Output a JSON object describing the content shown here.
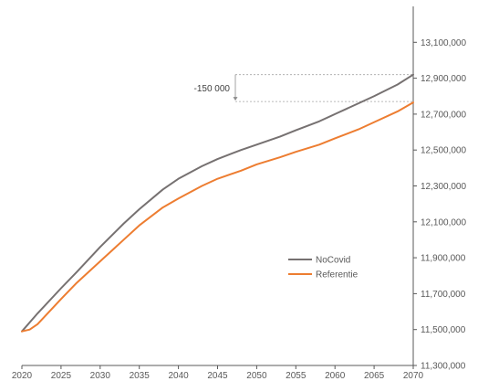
{
  "chart_data": {
    "type": "line",
    "title": "",
    "xlabel": "",
    "ylabel": "",
    "xlim": [
      2020,
      2070
    ],
    "ylim": [
      11300000,
      13300000
    ],
    "x_ticks": [
      "2020",
      "2025",
      "2030",
      "2035",
      "2040",
      "2045",
      "2050",
      "2055",
      "2060",
      "2065",
      "2070"
    ],
    "y_ticks": [
      "11,300,000",
      "11,500,000",
      "11,700,000",
      "11,900,000",
      "12,100,000",
      "12,300,000",
      "12,500,000",
      "12,700,000",
      "12,900,000",
      "13,100,000"
    ],
    "grid": false,
    "legend_position": "center-right",
    "series": [
      {
        "name": "NoCovid",
        "color": "#767171",
        "x": [
          2020,
          2022,
          2025,
          2027,
          2030,
          2033,
          2035,
          2038,
          2040,
          2043,
          2045,
          2048,
          2050,
          2053,
          2055,
          2058,
          2060,
          2063,
          2065,
          2068,
          2070
        ],
        "values": [
          11490000,
          11590000,
          11730000,
          11820000,
          11960000,
          12090000,
          12170000,
          12280000,
          12340000,
          12410000,
          12450000,
          12500000,
          12530000,
          12575000,
          12610000,
          12660000,
          12700000,
          12760000,
          12800000,
          12865000,
          12920000
        ]
      },
      {
        "name": "Referentie",
        "color": "#ED7D31",
        "x": [
          2020,
          2021,
          2022,
          2025,
          2027,
          2030,
          2033,
          2035,
          2038,
          2040,
          2043,
          2045,
          2048,
          2050,
          2053,
          2055,
          2058,
          2060,
          2063,
          2065,
          2068,
          2070
        ],
        "values": [
          11490000,
          11500000,
          11530000,
          11670000,
          11760000,
          11880000,
          12000000,
          12080000,
          12180000,
          12230000,
          12300000,
          12340000,
          12385000,
          12420000,
          12460000,
          12490000,
          12530000,
          12565000,
          12615000,
          12655000,
          12715000,
          12765000
        ]
      }
    ],
    "annotations": [
      {
        "text": "-150 000",
        "x": 2070,
        "from": 12920000,
        "to": 12770000
      }
    ]
  }
}
